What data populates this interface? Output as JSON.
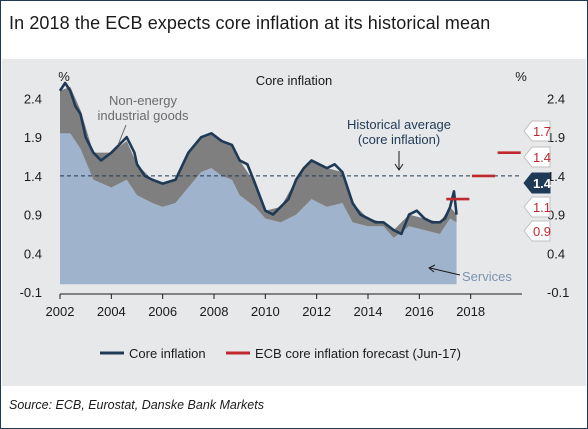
{
  "page": {
    "title": "In 2018 the ECB expects core inflation at its historical mean",
    "source": "Source: ECB, Eurostat, Danske Bank Markets"
  },
  "chart_data": {
    "type": "area",
    "title": "Core inflation",
    "y_unit_left": "%",
    "y_unit_right": "%",
    "ylim": [
      -0.1,
      2.6
    ],
    "yticks": [
      2.4,
      1.9,
      1.4,
      0.9,
      0.4,
      -0.1
    ],
    "yticks_labels": [
      "2.4",
      "1.9",
      "1.4",
      "0.9",
      "0.4",
      "-0.1"
    ],
    "xlim": [
      2002,
      2020
    ],
    "xticks": [
      2002,
      2004,
      2006,
      2008,
      2010,
      2012,
      2014,
      2016,
      2018
    ],
    "xticks_labels": [
      "2002",
      "2004",
      "2006",
      "2008",
      "2010",
      "2012",
      "2014",
      "2016",
      "2018"
    ],
    "grid": false,
    "legend_position": "bottom",
    "series": [
      {
        "name": "Core inflation",
        "kind": "line",
        "color": "#1f3a56",
        "x": [
          2002.0,
          2002.2,
          2002.4,
          2002.6,
          2002.8,
          2003.0,
          2003.3,
          2003.6,
          2004.0,
          2004.3,
          2004.6,
          2004.9,
          2005.0,
          2005.3,
          2005.6,
          2006.0,
          2006.5,
          2007.0,
          2007.5,
          2007.9,
          2008.3,
          2008.7,
          2009.0,
          2009.3,
          2009.6,
          2010.0,
          2010.3,
          2010.6,
          2010.9,
          2011.2,
          2011.5,
          2011.8,
          2012.1,
          2012.4,
          2012.7,
          2013.0,
          2013.2,
          2013.4,
          2013.7,
          2014.0,
          2014.3,
          2014.6,
          2015.0,
          2015.3,
          2015.6,
          2015.9,
          2016.2,
          2016.5,
          2016.8,
          2017.0,
          2017.2,
          2017.35,
          2017.45
        ],
        "y": [
          2.5,
          2.6,
          2.5,
          2.3,
          2.2,
          1.9,
          1.7,
          1.6,
          1.7,
          1.8,
          1.9,
          1.7,
          1.55,
          1.4,
          1.35,
          1.3,
          1.35,
          1.7,
          1.9,
          1.95,
          1.85,
          1.8,
          1.6,
          1.55,
          1.3,
          0.95,
          0.9,
          1.0,
          1.1,
          1.35,
          1.5,
          1.6,
          1.55,
          1.5,
          1.55,
          1.45,
          1.25,
          1.05,
          0.9,
          0.85,
          0.8,
          0.8,
          0.7,
          0.65,
          0.9,
          0.95,
          0.85,
          0.8,
          0.8,
          0.85,
          1.0,
          1.2,
          0.9
        ]
      },
      {
        "name": "Non-energy industrial goods",
        "kind": "area",
        "color": "#7f7f7f",
        "x": [
          2002.0,
          2002.4,
          2002.8,
          2003.3,
          2004.0,
          2004.6,
          2005.0,
          2005.6,
          2006.0,
          2006.5,
          2007.0,
          2007.5,
          2007.9,
          2008.3,
          2008.7,
          2009.0,
          2009.6,
          2010.0,
          2010.6,
          2011.2,
          2011.8,
          2012.4,
          2013.0,
          2013.4,
          2014.0,
          2014.6,
          2015.0,
          2015.6,
          2016.2,
          2016.8,
          2017.2,
          2017.45
        ],
        "y": [
          0.55,
          0.6,
          0.5,
          0.35,
          0.45,
          0.5,
          0.4,
          0.3,
          0.3,
          0.3,
          0.45,
          0.45,
          0.45,
          0.45,
          0.45,
          0.45,
          0.3,
          0.1,
          0.2,
          0.45,
          0.5,
          0.5,
          0.4,
          0.25,
          0.1,
          0.05,
          0.1,
          0.15,
          0.15,
          0.15,
          0.15,
          0.1
        ]
      },
      {
        "name": "Services",
        "kind": "area",
        "color": "#9fb3cc",
        "x": [
          2002.0,
          2002.4,
          2002.8,
          2003.3,
          2004.0,
          2004.6,
          2005.0,
          2005.6,
          2006.0,
          2006.5,
          2007.0,
          2007.5,
          2007.9,
          2008.3,
          2008.7,
          2009.0,
          2009.6,
          2010.0,
          2010.6,
          2011.2,
          2011.8,
          2012.4,
          2013.0,
          2013.4,
          2014.0,
          2014.6,
          2015.0,
          2015.6,
          2016.2,
          2016.8,
          2017.2,
          2017.45
        ],
        "y": [
          1.95,
          1.95,
          1.75,
          1.35,
          1.25,
          1.35,
          1.15,
          1.05,
          1.0,
          1.05,
          1.25,
          1.45,
          1.5,
          1.4,
          1.35,
          1.15,
          1.0,
          0.85,
          0.8,
          0.9,
          1.1,
          1.0,
          1.05,
          0.8,
          0.75,
          0.75,
          0.6,
          0.75,
          0.7,
          0.65,
          0.85,
          0.8
        ]
      },
      {
        "name": "ECB core inflation forecast (Jun-17)",
        "kind": "segments",
        "color": "#c0282e",
        "x": [
          2017,
          2018,
          2019
        ],
        "y": [
          1.1,
          1.4,
          1.7
        ]
      }
    ],
    "reference_line": {
      "label": "Historical average (core inflation)",
      "value": 1.4
    },
    "annotations": {
      "non_energy": "Non-energy industrial goods",
      "historical_avg": "Historical average (core inflation)",
      "services": "Services"
    },
    "right_labels": [
      {
        "text": "1.7",
        "value": 1.7,
        "color": "#c0282e"
      },
      {
        "text": "1.4",
        "value": 1.4,
        "color": "#c0282e"
      },
      {
        "text": "1.4",
        "value": 1.4,
        "color": "#1f3a56"
      },
      {
        "text": "1.1",
        "value": 1.1,
        "color": "#c0282e"
      },
      {
        "text": "0.9",
        "value": 0.9,
        "color": "#c0282e"
      }
    ]
  }
}
